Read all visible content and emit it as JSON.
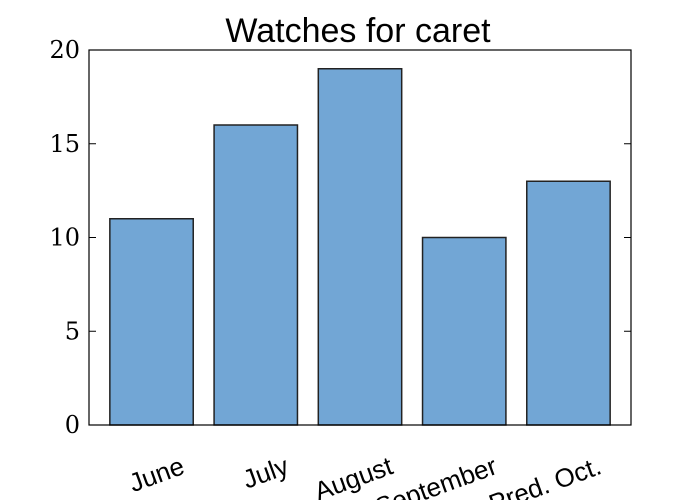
{
  "chart_data": {
    "type": "bar",
    "title": "Watches for caret",
    "categories": [
      "June",
      "July",
      "August",
      "September",
      "Pred. Oct."
    ],
    "values": [
      11,
      16,
      19,
      10,
      13
    ],
    "ylim": [
      0,
      20
    ],
    "yticks": [
      0,
      5,
      10,
      15,
      20
    ],
    "xlabel": "",
    "ylabel": "",
    "grid": false,
    "bar_color": "#72a6d5",
    "bar_edge_color": "#222222",
    "x_tick_rotation_deg": -20
  }
}
